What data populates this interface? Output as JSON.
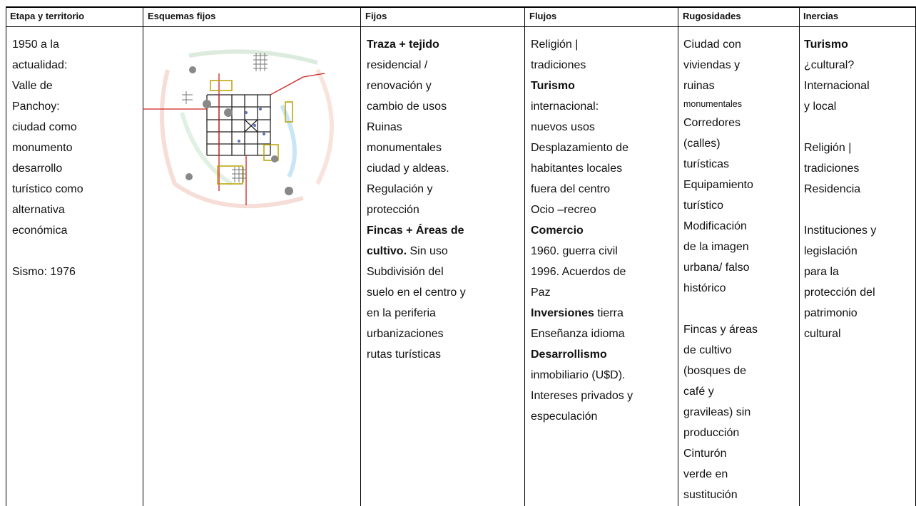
{
  "table": {
    "header": [
      "Etapa y territorio",
      "Esquemas fijos",
      "Fijos",
      "Flujos",
      "Rugosidades",
      "Inercias"
    ],
    "rows": [
      [
        [
          [
            "1950 a la",
            "actualidad:",
            "Valle de",
            "Panchoy:",
            "ciudad como",
            "monumento",
            "desarrollo",
            "turístico como",
            "alternativa",
            "económica"
          ],
          [
            "Sismo: 1976"
          ]
        ],
        [],
        [
          [
            [
              {
                "text": "Traza + tejido",
                "bold": true
              }
            ],
            "residencial /",
            "renovación y",
            "cambio de usos",
            "Ruinas",
            "monumentales",
            "ciudad y aldeas.",
            "Regulación y",
            "protección",
            [
              {
                "text": "Fincas + Áreas de",
                "bold": true
              }
            ],
            [
              {
                "text": "cultivo.",
                "bold": true
              },
              " Sin uso"
            ],
            "Subdivisión del",
            "suelo en el centro y",
            "en la periferia",
            "urbanizaciones",
            "rutas turísticas"
          ]
        ],
        [
          [
            "Religión |",
            "tradiciones",
            [
              {
                "text": "Turismo",
                "bold": true
              }
            ],
            "internacional:",
            "nuevos usos",
            "Desplazamiento de",
            "habitantes locales",
            "fuera del centro",
            "Ocio –recreo",
            [
              {
                "text": "Comercio",
                "bold": true
              }
            ],
            "1960. guerra civil",
            "1996. Acuerdos de",
            "Paz",
            [
              {
                "text": "Inversiones",
                "bold": true
              },
              " tierra"
            ],
            "Enseñanza idioma",
            [
              {
                "text": "Desarrollismo",
                "bold": true
              }
            ],
            "inmobiliario (U$D).",
            "Intereses privados y",
            "especulación"
          ]
        ],
        [
          [
            "Ciudad con",
            "viviendas y",
            "ruinas",
            [
              {
                "text": "monumentales",
                "small": true
              }
            ],
            "Corredores",
            "(calles)",
            "turísticas",
            "Equipamiento",
            "turístico",
            "Modificación",
            "de la imagen",
            "urbana/ falso",
            "histórico"
          ],
          [
            "Fincas y áreas",
            "de cultivo",
            "(bosques de",
            "café y",
            "gravileas) sin",
            "producción",
            "Cinturón",
            "verde en",
            "sustitución"
          ]
        ],
        [
          [
            [
              {
                "text": "Turismo",
                "bold": true
              }
            ],
            "¿cultural?",
            "Internacional",
            "y local"
          ],
          [
            "Religión |",
            "tradiciones",
            "Residencia"
          ],
          [
            "Instituciones y",
            "legislación",
            "para la",
            "protección del",
            "patrimonio",
            "cultural"
          ]
        ]
      ]
    ]
  }
}
